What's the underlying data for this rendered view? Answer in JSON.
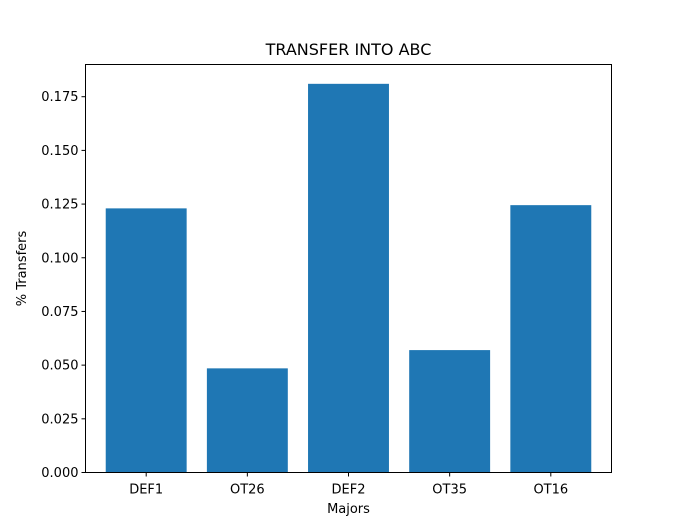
{
  "chart_data": {
    "type": "bar",
    "title": "TRANSFER INTO ABC",
    "xlabel": "Majors",
    "ylabel": "% Transfers",
    "categories": [
      "DEF1",
      "OT26",
      "DEF2",
      "OT35",
      "OT16"
    ],
    "values": [
      0.123,
      0.0485,
      0.181,
      0.057,
      0.1245
    ],
    "ylim": [
      0,
      0.19
    ],
    "yticks": [
      0.0,
      0.025,
      0.05,
      0.075,
      0.1,
      0.125,
      0.15,
      0.175
    ],
    "ytick_labels": [
      "0.000",
      "0.025",
      "0.050",
      "0.075",
      "0.100",
      "0.125",
      "0.150",
      "0.175"
    ],
    "bar_color": "#1f77b4",
    "grid": false,
    "legend": "none"
  }
}
